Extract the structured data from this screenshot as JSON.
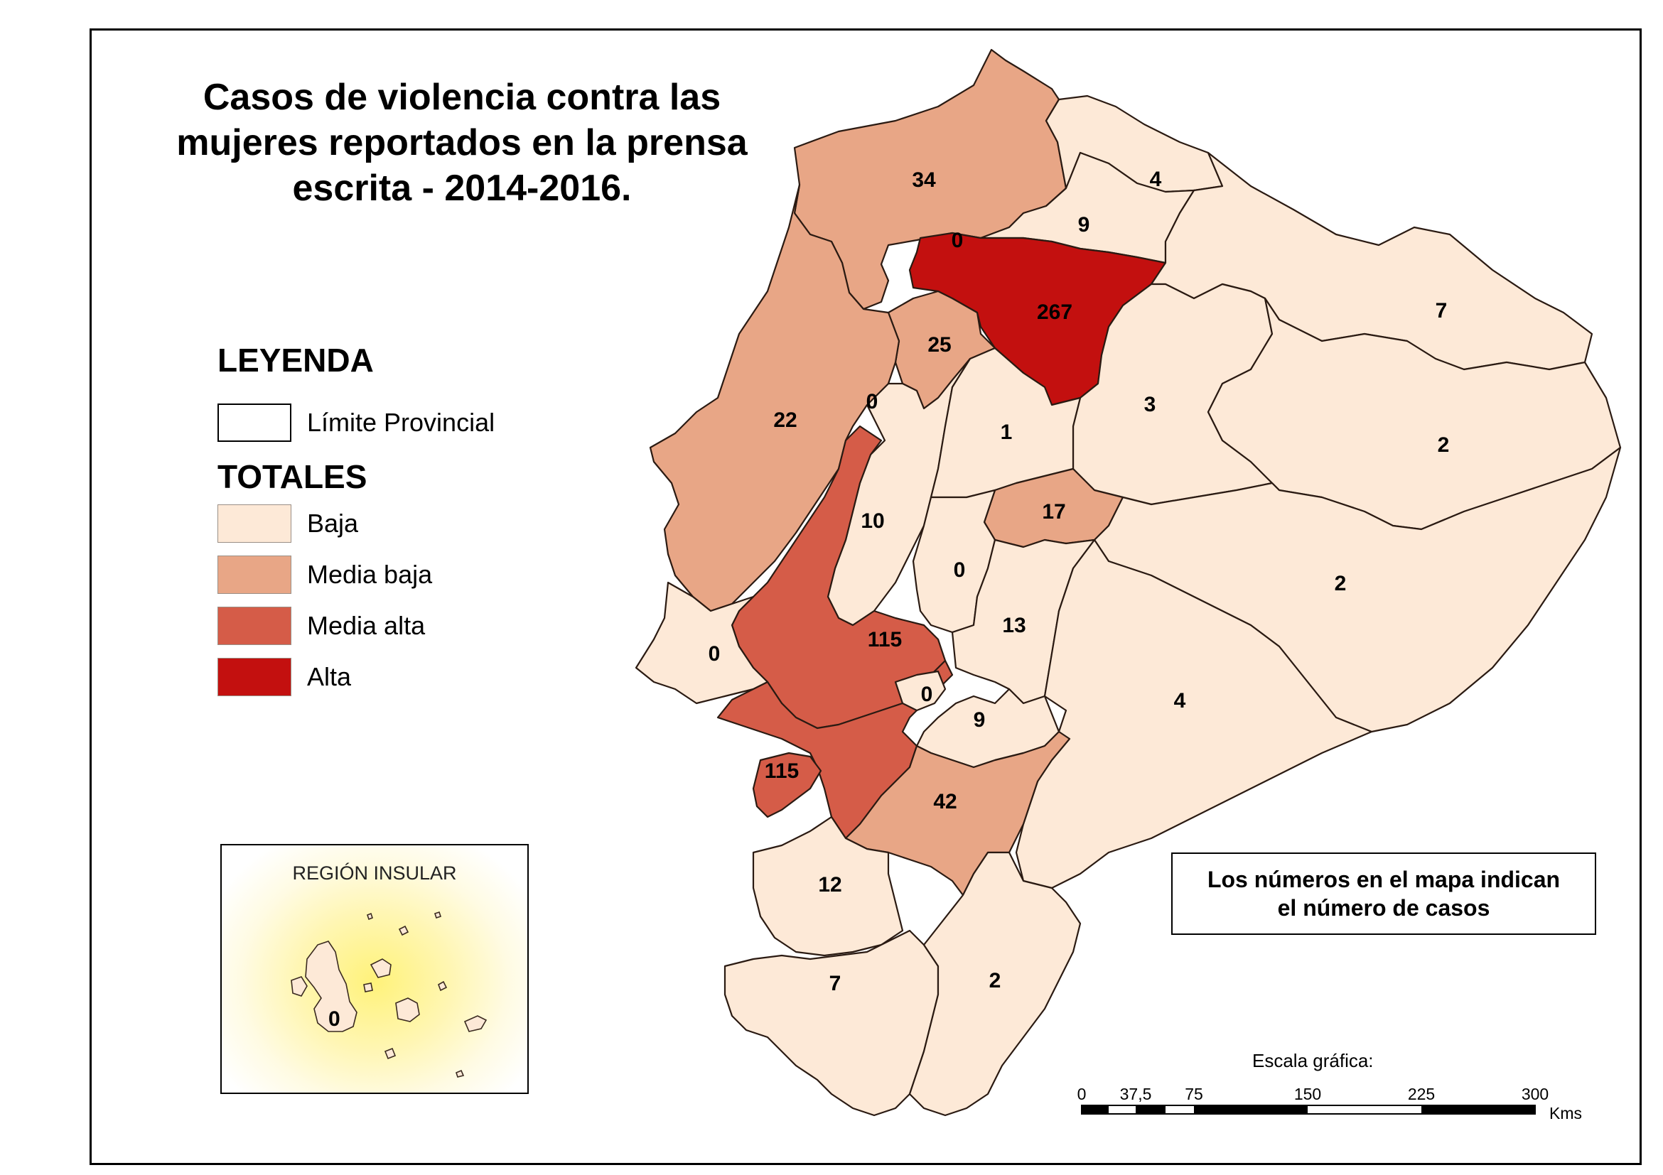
{
  "title": "Casos de violencia contra las mujeres reportados en la prensa escrita - 2014-2016.",
  "legend": {
    "heading": "LEYENDA",
    "boundary_label": "Límite Provincial",
    "totals_heading": "TOTALES",
    "classes": [
      {
        "label": "Baja",
        "color": "#fde9d7"
      },
      {
        "label": "Media baja",
        "color": "#e8a686"
      },
      {
        "label": "Media alta",
        "color": "#d55c48"
      },
      {
        "label": "Alta",
        "color": "#c3100f"
      }
    ]
  },
  "provinces": [
    {
      "value": "34",
      "class": "Media baja"
    },
    {
      "value": "4",
      "class": "Baja"
    },
    {
      "value": "9",
      "class": "Baja"
    },
    {
      "value": "0",
      "class": "Baja"
    },
    {
      "value": "267",
      "class": "Alta"
    },
    {
      "value": "25",
      "class": "Media baja"
    },
    {
      "value": "7",
      "class": "Baja"
    },
    {
      "value": "22",
      "class": "Media baja"
    },
    {
      "value": "0",
      "class": "Baja"
    },
    {
      "value": "3",
      "class": "Baja"
    },
    {
      "value": "1",
      "class": "Baja"
    },
    {
      "value": "2",
      "class": "Baja"
    },
    {
      "value": "17",
      "class": "Media baja"
    },
    {
      "value": "10",
      "class": "Baja"
    },
    {
      "value": "0",
      "class": "Baja"
    },
    {
      "value": "2",
      "class": "Baja"
    },
    {
      "value": "13",
      "class": "Baja"
    },
    {
      "value": "115",
      "class": "Media alta"
    },
    {
      "value": "0",
      "class": "Baja"
    },
    {
      "value": "0",
      "class": "Baja"
    },
    {
      "value": "9",
      "class": "Baja"
    },
    {
      "value": "4",
      "class": "Baja"
    },
    {
      "value": "115",
      "class": "Media alta"
    },
    {
      "value": "42",
      "class": "Media baja"
    },
    {
      "value": "12",
      "class": "Baja"
    },
    {
      "value": "7",
      "class": "Baja"
    },
    {
      "value": "2",
      "class": "Baja"
    }
  ],
  "inset": {
    "title": "REGIÓN INSULAR",
    "value": "0"
  },
  "note": {
    "line1": "Los números en el mapa indican",
    "line2": "el número de casos"
  },
  "scale": {
    "title": "Escala gráfica:",
    "ticks": [
      "0",
      "37,5",
      "75",
      "150",
      "225",
      "300"
    ],
    "unit": "Kms"
  }
}
